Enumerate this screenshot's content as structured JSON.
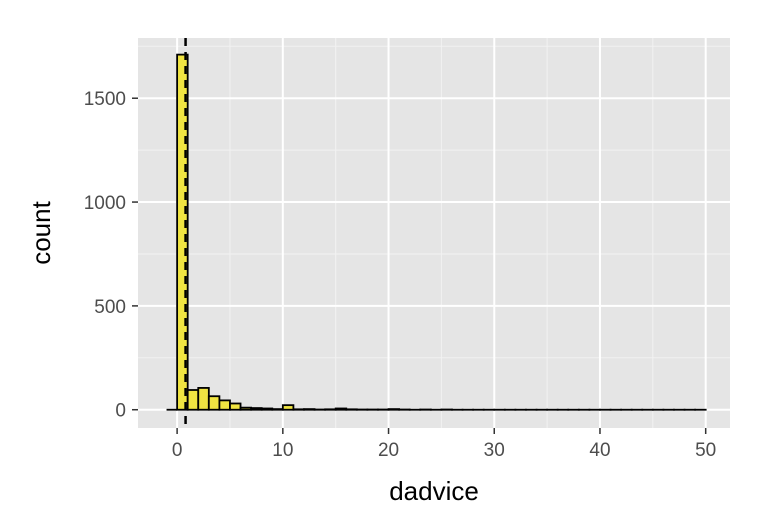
{
  "chart_data": {
    "type": "bar",
    "subtype": "histogram",
    "xlabel": "dadvice",
    "ylabel": "count",
    "xlim": [
      -3.7,
      52.3
    ],
    "ylim": [
      -88,
      1790
    ],
    "x_ticks": [
      0,
      10,
      20,
      30,
      40,
      50
    ],
    "x_tick_labels": [
      "0",
      "10",
      "20",
      "30",
      "40",
      "50"
    ],
    "y_ticks": [
      0,
      500,
      1000,
      1500
    ],
    "y_tick_labels": [
      "0",
      "500",
      "1000",
      "1500"
    ],
    "bin_width": 1,
    "bins": [
      {
        "x0": 0,
        "x1": 1,
        "count": 1710
      },
      {
        "x0": 1,
        "x1": 2,
        "count": 95
      },
      {
        "x0": 2,
        "x1": 3,
        "count": 105
      },
      {
        "x0": 3,
        "x1": 4,
        "count": 65
      },
      {
        "x0": 4,
        "x1": 5,
        "count": 45
      },
      {
        "x0": 5,
        "x1": 6,
        "count": 30
      },
      {
        "x0": 6,
        "x1": 7,
        "count": 10
      },
      {
        "x0": 7,
        "x1": 8,
        "count": 8
      },
      {
        "x0": 8,
        "x1": 9,
        "count": 6
      },
      {
        "x0": 9,
        "x1": 10,
        "count": 3
      },
      {
        "x0": 10,
        "x1": 11,
        "count": 22
      },
      {
        "x0": 11,
        "x1": 12,
        "count": 2
      },
      {
        "x0": 12,
        "x1": 13,
        "count": 3
      },
      {
        "x0": 13,
        "x1": 14,
        "count": 1
      },
      {
        "x0": 14,
        "x1": 15,
        "count": 2
      },
      {
        "x0": 15,
        "x1": 16,
        "count": 6
      },
      {
        "x0": 16,
        "x1": 17,
        "count": 2
      },
      {
        "x0": 17,
        "x1": 18,
        "count": 1
      },
      {
        "x0": 18,
        "x1": 19,
        "count": 1
      },
      {
        "x0": 19,
        "x1": 20,
        "count": 1
      },
      {
        "x0": 20,
        "x1": 21,
        "count": 3
      },
      {
        "x0": 21,
        "x1": 22,
        "count": 1
      },
      {
        "x0": 22,
        "x1": 23,
        "count": 0
      },
      {
        "x0": 23,
        "x1": 24,
        "count": 1
      },
      {
        "x0": 24,
        "x1": 25,
        "count": 0
      },
      {
        "x0": 25,
        "x1": 26,
        "count": 1
      }
    ],
    "bar_range_end": 50,
    "vline_x": 0.8,
    "vline_style": "dashed",
    "grid": true,
    "legend": "none",
    "colors": {
      "bar_fill": "#f0e442",
      "bar_stroke": "#000000",
      "panel_bg": "#e5e5e5",
      "grid_major": "#ffffff",
      "grid_minor": "#f2f2f2",
      "tick_text": "#4d4d4d",
      "vline": "#000000"
    }
  }
}
